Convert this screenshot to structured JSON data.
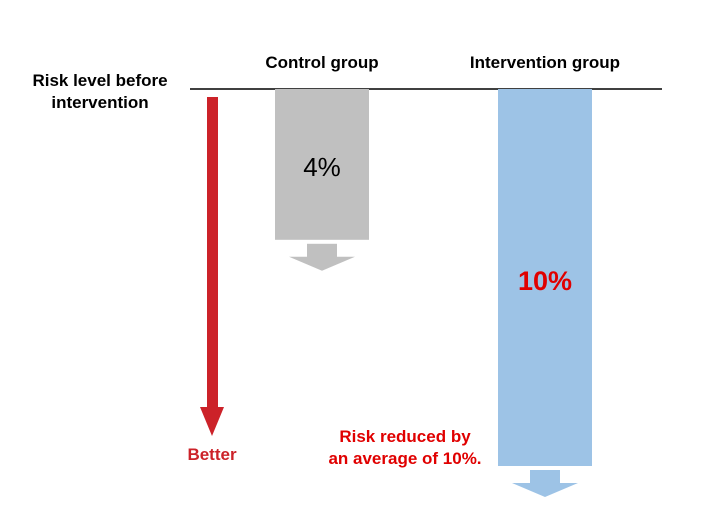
{
  "chart_data": {
    "type": "bar",
    "orientation": "downward",
    "baseline_label": "Risk level before intervention",
    "baseline_label_lines": [
      "Risk level before",
      "intervention"
    ],
    "categories": [
      "Control group",
      "Intervention group"
    ],
    "values": [
      4,
      10
    ],
    "value_labels": [
      "4%",
      "10%"
    ],
    "direction_label": "Better",
    "annotation_lines": [
      "Risk reduced by",
      "an average of 10%."
    ],
    "colors": {
      "control_bar": "#c0c0c0",
      "intervention_bar": "#9dc3e6",
      "direction_arrow": "#cc2229",
      "highlight_text": "#e00000",
      "text": "#000000"
    }
  }
}
